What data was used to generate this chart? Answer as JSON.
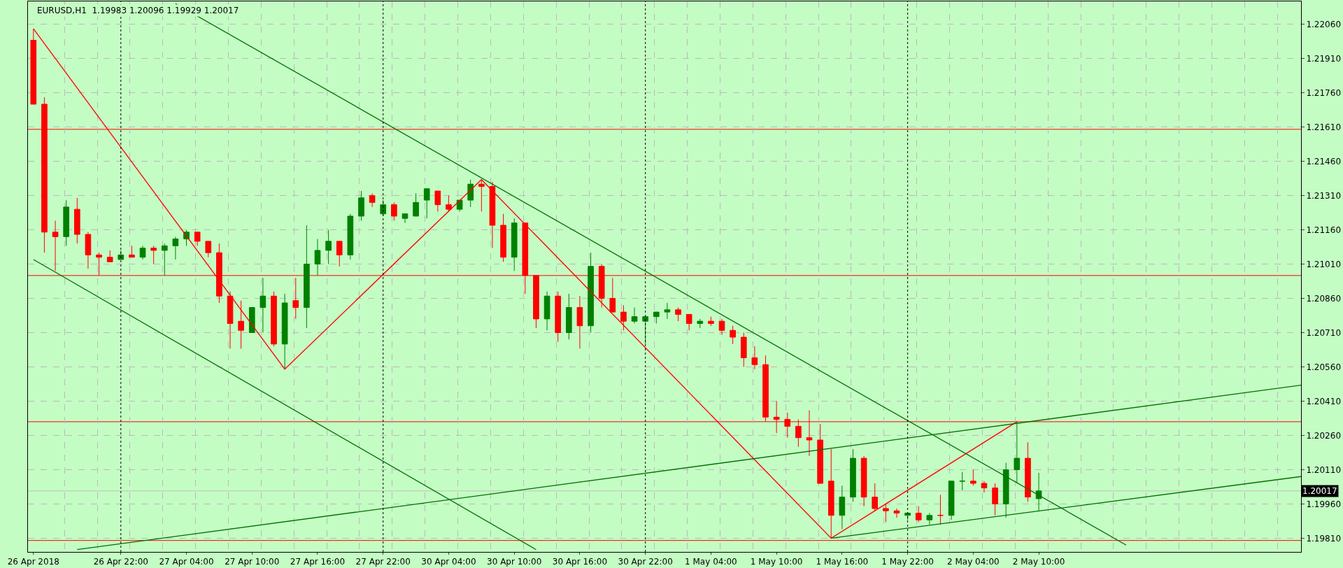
{
  "chart_data": {
    "type": "candlestick",
    "title": "EURUSD,H1  1.19983 1.20096 1.19929 1.20017",
    "categories": [
      "26 Apr 2018",
      null,
      null,
      null,
      null,
      null,
      null,
      null,
      "26 Apr 22:00",
      null,
      null,
      null,
      null,
      null,
      "27 Apr 04:00",
      null,
      null,
      null,
      null,
      null,
      "27 Apr 10:00",
      null,
      null,
      null,
      null,
      null,
      "27 Apr 16:00",
      null,
      null,
      null,
      null,
      null,
      "27 Apr 22:00",
      null,
      null,
      null,
      null,
      null,
      "30 Apr 04:00",
      null,
      null,
      null,
      null,
      null,
      "30 Apr 10:00",
      null,
      null,
      null,
      null,
      null,
      "30 Apr 16:00",
      null,
      null,
      null,
      null,
      null,
      "30 Apr 22:00",
      null,
      null,
      null,
      null,
      null,
      "1 May 04:00",
      null,
      null,
      null,
      null,
      null,
      "1 May 10:00",
      null,
      null,
      null,
      null,
      null,
      "1 May 16:00",
      null,
      null,
      null,
      null,
      null,
      "1 May 22:00",
      null,
      null,
      null,
      null,
      null,
      "2 May 04:00",
      null,
      null,
      null,
      null,
      null,
      "2 May 10:00",
      null,
      null,
      null,
      null,
      null,
      null,
      null,
      null,
      null,
      null,
      null,
      null,
      null,
      null,
      null,
      null,
      null,
      null,
      null,
      null,
      null,
      null,
      null,
      null
    ],
    "ohlc": [
      [
        1.2199,
        1.2204,
        1.2171,
        1.2171
      ],
      [
        1.2171,
        1.2174,
        1.2106,
        1.2115
      ],
      [
        1.2115,
        1.212,
        1.2098,
        1.2113
      ],
      [
        1.2113,
        1.2129,
        1.2109,
        1.2126
      ],
      [
        1.2125,
        1.213,
        1.211,
        1.2114
      ],
      [
        1.2114,
        1.2115,
        1.2099,
        1.2105
      ],
      [
        1.2105,
        1.2106,
        1.2096,
        1.2104
      ],
      [
        1.2104,
        1.2107,
        1.2102,
        1.2102
      ],
      [
        1.2103,
        1.2107,
        1.2103,
        1.2105
      ],
      [
        1.2105,
        1.2109,
        1.2104,
        1.2104
      ],
      [
        1.2104,
        1.2109,
        1.2103,
        1.2108
      ],
      [
        1.2108,
        1.2109,
        1.2101,
        1.2107
      ],
      [
        1.2107,
        1.211,
        1.2096,
        1.2109
      ],
      [
        1.2109,
        1.2113,
        1.2103,
        1.2112
      ],
      [
        1.2112,
        1.2116,
        1.2109,
        1.2115
      ],
      [
        1.2115,
        1.2115,
        1.2109,
        1.2111
      ],
      [
        1.2111,
        1.2111,
        1.2104,
        1.2106
      ],
      [
        1.2106,
        1.211,
        1.2084,
        1.2087
      ],
      [
        1.2087,
        1.2089,
        1.2064,
        1.2075
      ],
      [
        1.2076,
        1.2085,
        1.2064,
        1.2072
      ],
      [
        1.2071,
        1.2082,
        1.2071,
        1.2082
      ],
      [
        1.2082,
        1.2095,
        1.2071,
        1.2087
      ],
      [
        1.2087,
        1.2089,
        1.2065,
        1.2066
      ],
      [
        1.2066,
        1.2088,
        1.2055,
        1.2084
      ],
      [
        1.2085,
        1.2095,
        1.2077,
        1.2082
      ],
      [
        1.2082,
        1.2118,
        1.2073,
        1.2101
      ],
      [
        1.2101,
        1.2112,
        1.2096,
        1.2107
      ],
      [
        1.2107,
        1.2116,
        1.2101,
        1.2111
      ],
      [
        1.2111,
        1.2111,
        1.21,
        1.2105
      ],
      [
        1.2105,
        1.2123,
        1.2103,
        1.2122
      ],
      [
        1.2122,
        1.2133,
        1.212,
        1.213
      ],
      [
        1.2131,
        1.2132,
        1.2126,
        1.2128
      ],
      [
        1.2123,
        1.2129,
        1.2122,
        1.2127
      ],
      [
        1.2127,
        1.2128,
        1.212,
        1.2122
      ],
      [
        1.2121,
        1.2123,
        1.2119,
        1.2123
      ],
      [
        1.2122,
        1.2132,
        1.2122,
        1.2128
      ],
      [
        1.2129,
        1.2134,
        1.2121,
        1.2134
      ],
      [
        1.2133,
        1.2133,
        1.2124,
        1.2127
      ],
      [
        1.2127,
        1.2131,
        1.2124,
        1.2125
      ],
      [
        1.2125,
        1.2129,
        1.2124,
        1.2129
      ],
      [
        1.2129,
        1.2138,
        1.2126,
        1.2136
      ],
      [
        1.2136,
        1.2138,
        1.2124,
        1.2135
      ],
      [
        1.2135,
        1.2137,
        1.2108,
        1.2118
      ],
      [
        1.2118,
        1.2123,
        1.2102,
        1.2104
      ],
      [
        1.2104,
        1.2121,
        1.2098,
        1.2119
      ],
      [
        1.2119,
        1.2119,
        1.2088,
        1.2096
      ],
      [
        1.2096,
        1.2096,
        1.2073,
        1.2077
      ],
      [
        1.2077,
        1.2089,
        1.2072,
        1.2087
      ],
      [
        1.2087,
        1.2089,
        1.2067,
        1.2071
      ],
      [
        1.2071,
        1.2088,
        1.2068,
        1.2082
      ],
      [
        1.2082,
        1.2087,
        1.2064,
        1.2074
      ],
      [
        1.2074,
        1.2106,
        1.2071,
        1.21
      ],
      [
        1.21,
        1.2101,
        1.2082,
        1.2086
      ],
      [
        1.2086,
        1.2095,
        1.208,
        1.208
      ],
      [
        1.208,
        1.2083,
        1.2072,
        1.2076
      ],
      [
        1.2076,
        1.2082,
        1.2075,
        1.2078
      ],
      [
        1.2076,
        1.2078,
        1.2066,
        1.2078
      ],
      [
        1.2078,
        1.208,
        1.2075,
        1.208
      ],
      [
        1.208,
        1.2084,
        1.2077,
        1.2081
      ],
      [
        1.2081,
        1.2082,
        1.2076,
        1.2079
      ],
      [
        1.2079,
        1.2079,
        1.2072,
        1.2075
      ],
      [
        1.2075,
        1.2077,
        1.2073,
        1.2076
      ],
      [
        1.2076,
        1.2078,
        1.2074,
        1.2075
      ],
      [
        1.2076,
        1.2077,
        1.207,
        1.2072
      ],
      [
        1.2072,
        1.2074,
        1.2066,
        1.2069
      ],
      [
        1.2069,
        1.2071,
        1.2056,
        1.206
      ],
      [
        1.206,
        1.2065,
        1.2055,
        1.2057
      ],
      [
        1.2057,
        1.2061,
        1.2032,
        1.2034
      ],
      [
        1.2034,
        1.2041,
        1.2027,
        1.2033
      ],
      [
        1.2033,
        1.2036,
        1.2025,
        1.203
      ],
      [
        1.203,
        1.2033,
        1.2021,
        1.2025
      ],
      [
        1.2025,
        1.2037,
        1.2017,
        1.2024
      ],
      [
        1.2024,
        1.2031,
        1.2005,
        1.2005
      ],
      [
        1.2006,
        1.202,
        1.1981,
        1.1991
      ],
      [
        1.1991,
        1.2004,
        1.1985,
        1.1999
      ],
      [
        1.1999,
        1.202,
        1.1997,
        1.2016
      ],
      [
        1.2016,
        1.2017,
        1.1995,
        1.1999
      ],
      [
        1.1999,
        1.2005,
        1.1993,
        1.1994
      ],
      [
        1.1994,
        1.1996,
        1.1988,
        1.1993
      ],
      [
        1.1993,
        1.1994,
        1.199,
        1.1992
      ],
      [
        1.1991,
        1.1992,
        1.1989,
        1.1992
      ],
      [
        1.1992,
        1.1995,
        1.1988,
        1.1989
      ],
      [
        1.1989,
        1.1992,
        1.1987,
        1.1991
      ],
      [
        1.1991,
        1.2,
        1.1987,
        1.1991
      ],
      [
        1.1991,
        1.2006,
        1.1989,
        1.2006
      ],
      [
        1.2006,
        1.201,
        1.2002,
        1.2006
      ],
      [
        1.2006,
        1.2011,
        1.2004,
        1.2005
      ],
      [
        1.2005,
        1.2006,
        1.2001,
        1.2003
      ],
      [
        1.2003,
        1.2005,
        1.1991,
        1.1996
      ],
      [
        1.1996,
        1.2014,
        1.199,
        1.2011
      ],
      [
        1.2011,
        1.2032,
        1.2005,
        1.2016
      ],
      [
        1.2016,
        1.2023,
        1.1997,
        1.1999
      ],
      [
        1.19983,
        1.20096,
        1.19929,
        1.20017
      ],
      null,
      null,
      null,
      null,
      null,
      null,
      null,
      null,
      null,
      null,
      null,
      null,
      null,
      null,
      null,
      null,
      null,
      null,
      null,
      null,
      null,
      null,
      null,
      null
    ],
    "colors": [
      "#ff0000",
      "#ff0000",
      "#ff0000",
      "#008000",
      "#ff0000",
      "#ff0000",
      "#ff0000",
      "#ff0000",
      "#008000",
      "#ff0000",
      "#008000",
      "#ff0000",
      "#008000",
      "#008000",
      "#008000",
      "#ff0000",
      "#ff0000",
      "#ff0000",
      "#ff0000",
      "#ff0000",
      "#008000",
      "#008000",
      "#ff0000",
      "#008000",
      "#ff0000",
      "#008000",
      "#008000",
      "#008000",
      "#ff0000",
      "#008000",
      "#008000",
      "#ff0000",
      "#008000",
      "#ff0000",
      "#008000",
      "#008000",
      "#008000",
      "#ff0000",
      "#ff0000",
      "#008000",
      "#008000",
      "#ff0000",
      "#ff0000",
      "#ff0000",
      "#008000",
      "#ff0000",
      "#ff0000",
      "#008000",
      "#ff0000",
      "#008000",
      "#ff0000",
      "#008000",
      "#ff0000",
      "#ff0000",
      "#ff0000",
      "#008000",
      "#008000",
      "#008000",
      "#008000",
      "#ff0000",
      "#ff0000",
      "#008000",
      "#ff0000",
      "#ff0000",
      "#ff0000",
      "#ff0000",
      "#ff0000",
      "#ff0000",
      "#ff0000",
      "#ff0000",
      "#ff0000",
      "#ff0000",
      "#ff0000",
      "#ff0000",
      "#008000",
      "#008000",
      "#ff0000",
      "#ff0000",
      "#ff0000",
      "#ff0000",
      "#008000",
      "#ff0000",
      "#008000",
      "#ff0000",
      "#008000",
      "#008000",
      "#ff0000",
      "#ff0000",
      "#ff0000",
      "#008000",
      "#008000",
      "#ff0000",
      "#008000",
      null,
      null,
      null,
      null,
      null,
      null,
      null,
      null,
      null,
      null,
      null,
      null,
      null,
      null,
      null,
      null,
      null,
      null,
      null,
      null,
      null,
      null,
      null,
      null
    ],
    "series": [
      {
        "type": "line",
        "color": "#ff0000",
        "values": [
          1.2204,
          null,
          null,
          null,
          null,
          null,
          null,
          null,
          null,
          null,
          null,
          null,
          null,
          null,
          null,
          null,
          null,
          null,
          null,
          null,
          null,
          null,
          null,
          1.2055,
          null,
          null,
          null,
          null,
          null,
          null,
          null,
          null,
          null,
          null,
          null,
          null,
          null,
          null,
          null,
          null,
          null,
          1.2138,
          null,
          null,
          null,
          null,
          null,
          null,
          null,
          null,
          null,
          null,
          null,
          null,
          null,
          null,
          null,
          null,
          null,
          null,
          null,
          null,
          null,
          null,
          null,
          null,
          null,
          null,
          null,
          null,
          null,
          null,
          null,
          1.1981,
          null,
          null,
          null,
          null,
          null,
          null,
          null,
          null,
          null,
          null,
          null,
          null,
          null,
          null,
          null,
          null,
          1.2032,
          null,
          null,
          null,
          null,
          null,
          null,
          null,
          null,
          null,
          null,
          null,
          null,
          null,
          null,
          null,
          null,
          null,
          null,
          null,
          null,
          null,
          null,
          null,
          null,
          null,
          null
        ]
      },
      {
        "type": "line",
        "color": "#007000",
        "values": [
          null,
          null,
          null,
          null,
          null,
          null,
          null,
          null,
          null,
          null,
          null,
          null,
          null,
          1.2215,
          null,
          null,
          null,
          null,
          null,
          null,
          null,
          null,
          null,
          null,
          null,
          null,
          null,
          null,
          null,
          null,
          null,
          null,
          null,
          null,
          null,
          null,
          null,
          null,
          null,
          null,
          null,
          null,
          null,
          null,
          null,
          null,
          null,
          null,
          null,
          null,
          null,
          null,
          null,
          null,
          null,
          null,
          null,
          null,
          null,
          null,
          null,
          null,
          null,
          null,
          null,
          null,
          null,
          null,
          null,
          null,
          null,
          null,
          null,
          null,
          null,
          null,
          null,
          null,
          null,
          null,
          null,
          null,
          null,
          null,
          null,
          null,
          null,
          null,
          null,
          null,
          null,
          null,
          null,
          null,
          null,
          null,
          null,
          null,
          null,
          null,
          1.1978,
          null,
          null,
          null,
          null,
          null,
          null,
          null,
          null,
          null,
          null,
          null,
          null,
          null,
          null,
          null,
          null
        ]
      },
      {
        "type": "line",
        "color": "#007000",
        "values": [
          1.2103,
          null,
          null,
          null,
          null,
          null,
          null,
          null,
          null,
          null,
          null,
          null,
          null,
          null,
          null,
          null,
          null,
          null,
          null,
          null,
          null,
          null,
          null,
          null,
          null,
          null,
          null,
          null,
          null,
          null,
          null,
          null,
          null,
          null,
          null,
          null,
          null,
          null,
          null,
          null,
          null,
          null,
          null,
          null,
          null,
          null,
          1.1976,
          null,
          null,
          null,
          null,
          null,
          null,
          null,
          null,
          null,
          null,
          null,
          null,
          null,
          null,
          null,
          null,
          null,
          null,
          null,
          null,
          null,
          null,
          null,
          null,
          null,
          null,
          null,
          null,
          null,
          null,
          null,
          null,
          null,
          null,
          null,
          null,
          null,
          null,
          null,
          null,
          null,
          null,
          null,
          null,
          null,
          null,
          null,
          null,
          null,
          null,
          null,
          null,
          null,
          null,
          null,
          null,
          null,
          null,
          null,
          null,
          null,
          null,
          null,
          null,
          null,
          null,
          null,
          null,
          null,
          null
        ]
      },
      {
        "type": "line",
        "color": "#007000",
        "values": [
          null,
          null,
          null,
          null,
          1.1976,
          null,
          null,
          null,
          null,
          null,
          null,
          null,
          null,
          null,
          null,
          null,
          null,
          null,
          null,
          null,
          null,
          null,
          null,
          null,
          null,
          null,
          null,
          null,
          null,
          null,
          null,
          null,
          null,
          null,
          null,
          null,
          null,
          null,
          null,
          null,
          null,
          null,
          null,
          null,
          null,
          null,
          null,
          null,
          null,
          null,
          null,
          null,
          null,
          null,
          null,
          null,
          null,
          null,
          null,
          null,
          null,
          null,
          null,
          null,
          null,
          null,
          null,
          null,
          null,
          null,
          null,
          null,
          null,
          null,
          null,
          null,
          null,
          null,
          null,
          null,
          null,
          null,
          null,
          null,
          null,
          null,
          null,
          null,
          null,
          null,
          null,
          null,
          null,
          null,
          null,
          null,
          null,
          null,
          null,
          null,
          null,
          null,
          null,
          null,
          null,
          null,
          null,
          null,
          null,
          null,
          null,
          null,
          null,
          null,
          null,
          null,
          1.2048
        ]
      },
      {
        "type": "line",
        "color": "#007000",
        "values": [
          null,
          null,
          null,
          null,
          null,
          null,
          null,
          null,
          null,
          null,
          null,
          null,
          null,
          null,
          null,
          null,
          null,
          null,
          null,
          null,
          null,
          null,
          null,
          null,
          null,
          null,
          null,
          null,
          null,
          null,
          null,
          null,
          null,
          null,
          null,
          null,
          null,
          null,
          null,
          null,
          null,
          null,
          null,
          null,
          null,
          null,
          null,
          null,
          null,
          null,
          null,
          null,
          null,
          null,
          null,
          null,
          null,
          null,
          null,
          null,
          null,
          null,
          null,
          null,
          null,
          null,
          null,
          null,
          null,
          null,
          null,
          null,
          null,
          1.1981,
          null,
          null,
          null,
          null,
          null,
          null,
          null,
          null,
          null,
          null,
          null,
          null,
          null,
          null,
          null,
          null,
          null,
          null,
          null,
          null,
          null,
          null,
          null,
          null,
          null,
          null,
          null,
          null,
          null,
          null,
          null,
          null,
          null,
          null,
          null,
          null,
          null,
          null,
          null,
          null,
          null,
          null,
          1.2008
        ]
      }
    ],
    "ylim": [
      1.1975,
      1.2216
    ],
    "yticks": [
      {
        "value": 1.1981,
        "label": "1.19810"
      },
      {
        "value": 1.1996,
        "label": "1.19960"
      },
      {
        "value": 1.2011,
        "label": "1.20110"
      },
      {
        "value": 1.2026,
        "label": "1.20260"
      },
      {
        "value": 1.2041,
        "label": "1.20410"
      },
      {
        "value": 1.2056,
        "label": "1.20560"
      },
      {
        "value": 1.2071,
        "label": "1.20710"
      },
      {
        "value": 1.2086,
        "label": "1.20860"
      },
      {
        "value": 1.2101,
        "label": "1.21010"
      },
      {
        "value": 1.2116,
        "label": "1.21160"
      },
      {
        "value": 1.2131,
        "label": "1.21310"
      },
      {
        "value": 1.2146,
        "label": "1.21460"
      },
      {
        "value": 1.2161,
        "label": "1.21610"
      },
      {
        "value": 1.2176,
        "label": "1.21760"
      },
      {
        "value": 1.2191,
        "label": "1.21910"
      },
      {
        "value": 1.2206,
        "label": "1.22060"
      }
    ],
    "ref_lines": [
      {
        "axis": "y",
        "value": 1.216,
        "color": "#ff0000"
      },
      {
        "axis": "y",
        "value": 1.2096,
        "color": "#ff0000"
      },
      {
        "axis": "y",
        "value": 1.2032,
        "color": "#ff0000"
      },
      {
        "axis": "y",
        "value": 1.198,
        "color": "#ff0000"
      },
      {
        "axis": "y",
        "value": 1.20017,
        "color": "#c0c0c0",
        "label": "1.20017"
      },
      {
        "axis": "x",
        "value": "26 Apr 22:00",
        "color": "#000000",
        "line_style": "dotted"
      },
      {
        "axis": "x",
        "value": "27 Apr 22:00",
        "color": "#000000",
        "line_style": "dotted"
      },
      {
        "axis": "x",
        "value": "30 Apr 22:00",
        "color": "#000000",
        "line_style": "dotted"
      },
      {
        "axis": "x",
        "value": "1 May 22:00",
        "color": "#000000",
        "line_style": "dotted"
      }
    ],
    "grid": true
  }
}
